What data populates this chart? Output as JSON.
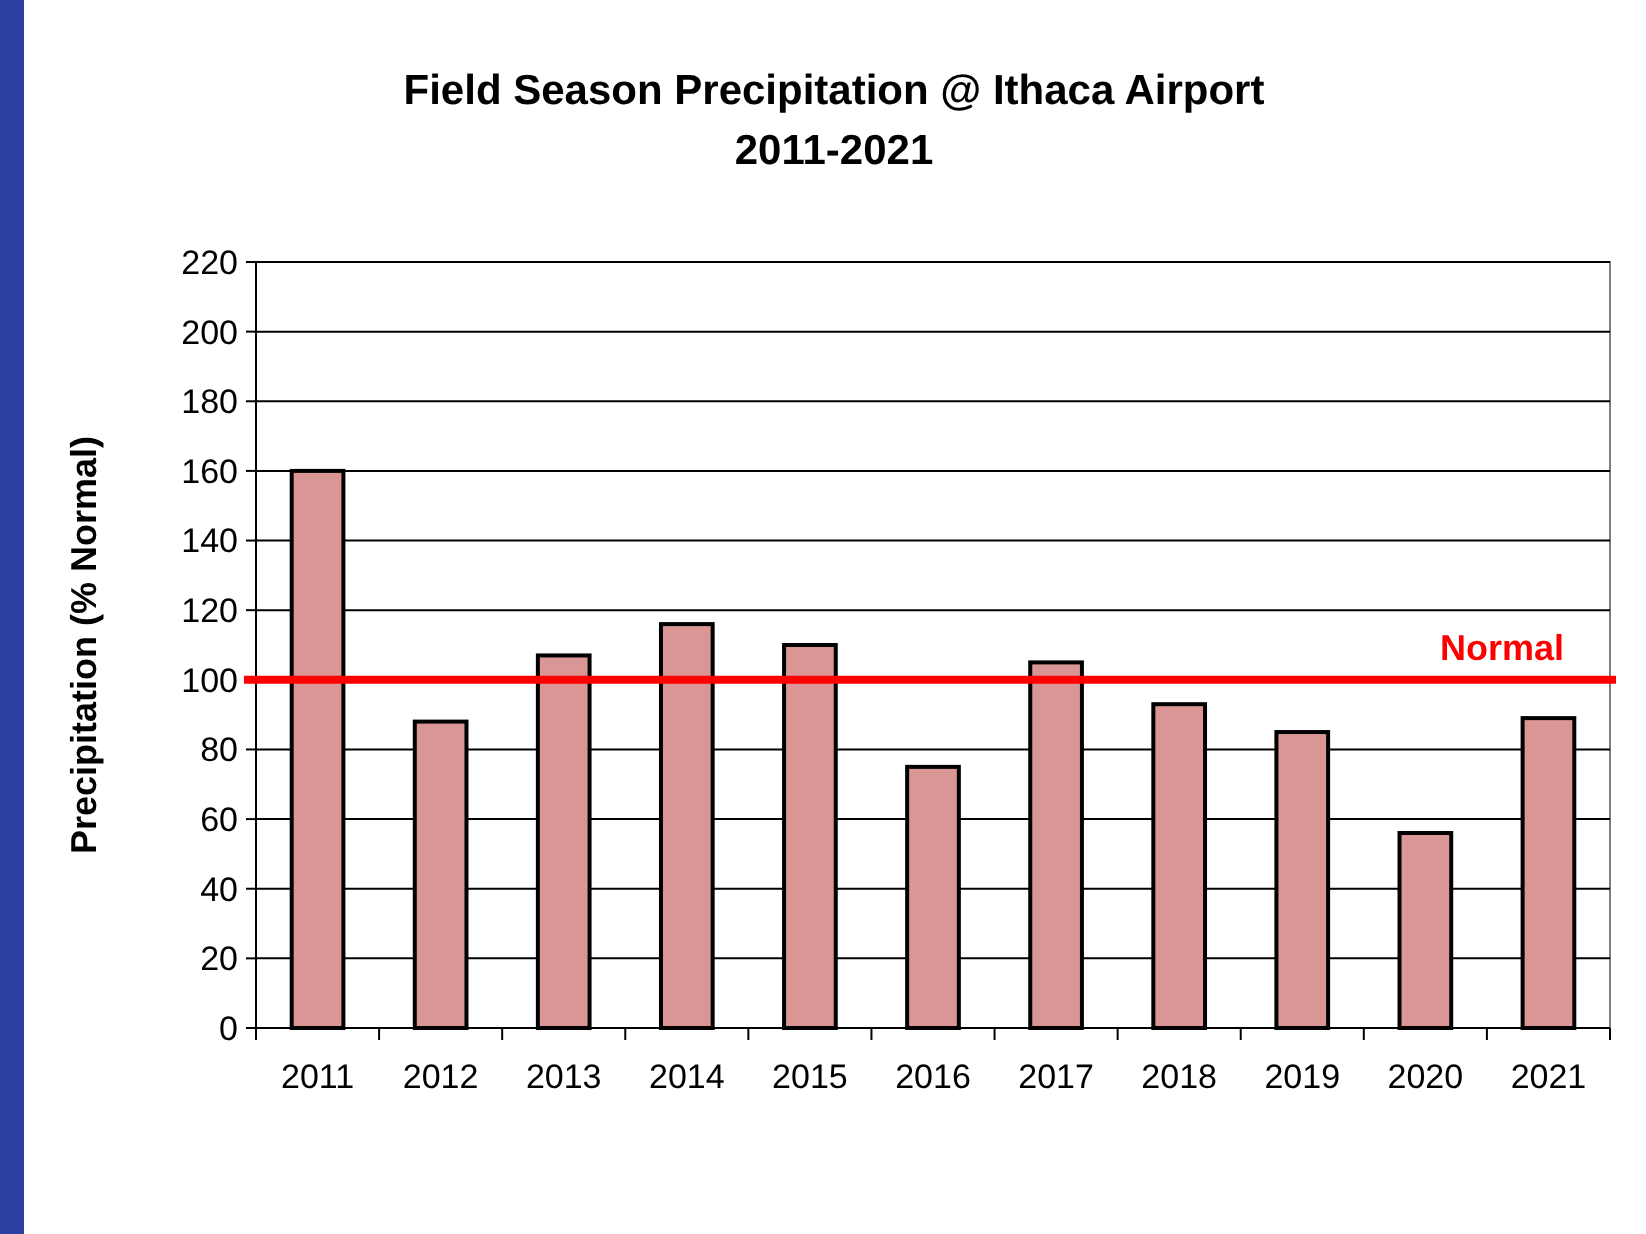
{
  "chart_data": {
    "type": "bar",
    "title": "Field Season Precipitation @ Ithaca Airport",
    "subtitle": "2011-2021",
    "ylabel": "Precipitation (% Normal)",
    "categories": [
      "2011",
      "2012",
      "2013",
      "2014",
      "2015",
      "2016",
      "2017",
      "2018",
      "2019",
      "2020",
      "2021"
    ],
    "values": [
      160,
      88,
      107,
      116,
      110,
      75,
      105,
      93,
      85,
      56,
      89
    ],
    "color": "#d99694",
    "ylim": [
      0,
      220
    ],
    "yticks": [
      0,
      20,
      40,
      60,
      80,
      100,
      120,
      140,
      160,
      180,
      200,
      220
    ],
    "grid": "y",
    "ref_lines": [
      {
        "axis": "y",
        "value": 100,
        "label": "Normal",
        "color": "#ff0000"
      }
    ]
  }
}
